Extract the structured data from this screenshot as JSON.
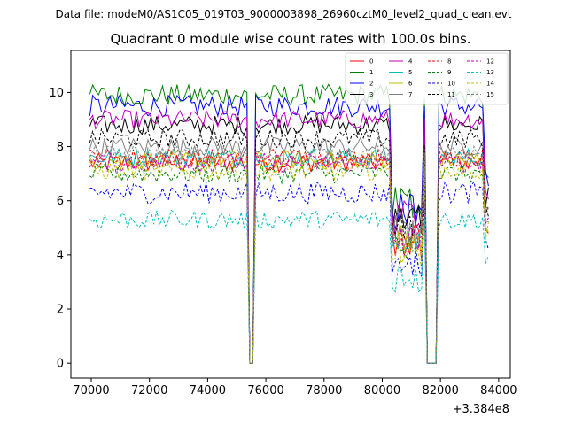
{
  "header": {
    "data_file": "Data file: modeM0/AS1C05_019T03_9000003898_26960cztM0_level2_quad_clean.evt"
  },
  "chart_data": {
    "type": "line",
    "title": "Quadrant 0 module wise count rates with 100.0s bins.",
    "xlabel": "",
    "ylabel": "",
    "x_offset_label": "+3.384e8",
    "xlim": [
      69300,
      84400
    ],
    "ylim": [
      -0.55,
      11.55
    ],
    "x_ticks": [
      70000,
      72000,
      74000,
      76000,
      78000,
      80000,
      82000,
      84000
    ],
    "x_tick_labels": [
      "70000",
      "72000",
      "74000",
      "76000",
      "78000",
      "80000",
      "82000",
      "84000"
    ],
    "y_ticks": [
      0,
      2,
      4,
      6,
      8,
      10
    ],
    "y_tick_labels": [
      "0",
      "2",
      "4",
      "6",
      "8",
      "10"
    ],
    "bin_seconds": 100,
    "x_start": 69950,
    "x_end": 83650,
    "gaps": [
      [
        75350,
        75650
      ],
      [
        81450,
        81950
      ]
    ],
    "dips": [
      {
        "start": 80350,
        "end": 81350,
        "level": 0.6
      }
    ],
    "legend_position": "top-right",
    "series": [
      {
        "name": "0",
        "level": 7.4,
        "noise": 0.35,
        "color": "#ff0000",
        "dash": "solid"
      },
      {
        "name": "1",
        "level": 9.9,
        "noise": 0.4,
        "color": "#008000",
        "dash": "solid"
      },
      {
        "name": "2",
        "level": 9.5,
        "noise": 0.4,
        "color": "#0000ff",
        "dash": "solid"
      },
      {
        "name": "3",
        "level": 8.8,
        "noise": 0.35,
        "color": "#000000",
        "dash": "solid"
      },
      {
        "name": "4",
        "level": 9.0,
        "noise": 0.35,
        "color": "#bf00bf",
        "dash": "solid"
      },
      {
        "name": "5",
        "level": 7.6,
        "noise": 0.35,
        "color": "#00bfbf",
        "dash": "solid"
      },
      {
        "name": "6",
        "level": 7.5,
        "noise": 0.35,
        "color": "#bfbf00",
        "dash": "solid"
      },
      {
        "name": "7",
        "level": 8.0,
        "noise": 0.35,
        "color": "#808080",
        "dash": "solid"
      },
      {
        "name": "8",
        "level": 7.6,
        "noise": 0.35,
        "color": "#ff0000",
        "dash": "dashed"
      },
      {
        "name": "9",
        "level": 7.0,
        "noise": 0.35,
        "color": "#008000",
        "dash": "dashed"
      },
      {
        "name": "10",
        "level": 6.3,
        "noise": 0.4,
        "color": "#0000ff",
        "dash": "dashed"
      },
      {
        "name": "11",
        "level": 8.3,
        "noise": 0.35,
        "color": "#000000",
        "dash": "dashed"
      },
      {
        "name": "12",
        "level": 7.4,
        "noise": 0.35,
        "color": "#bf00bf",
        "dash": "dashed"
      },
      {
        "name": "13",
        "level": 5.3,
        "noise": 0.35,
        "color": "#00bfbf",
        "dash": "dashed"
      },
      {
        "name": "14",
        "level": 7.1,
        "noise": 0.35,
        "color": "#bfbf00",
        "dash": "dashed"
      },
      {
        "name": "15",
        "level": 7.7,
        "noise": 0.35,
        "color": "#808080",
        "dash": "dashed"
      }
    ]
  }
}
